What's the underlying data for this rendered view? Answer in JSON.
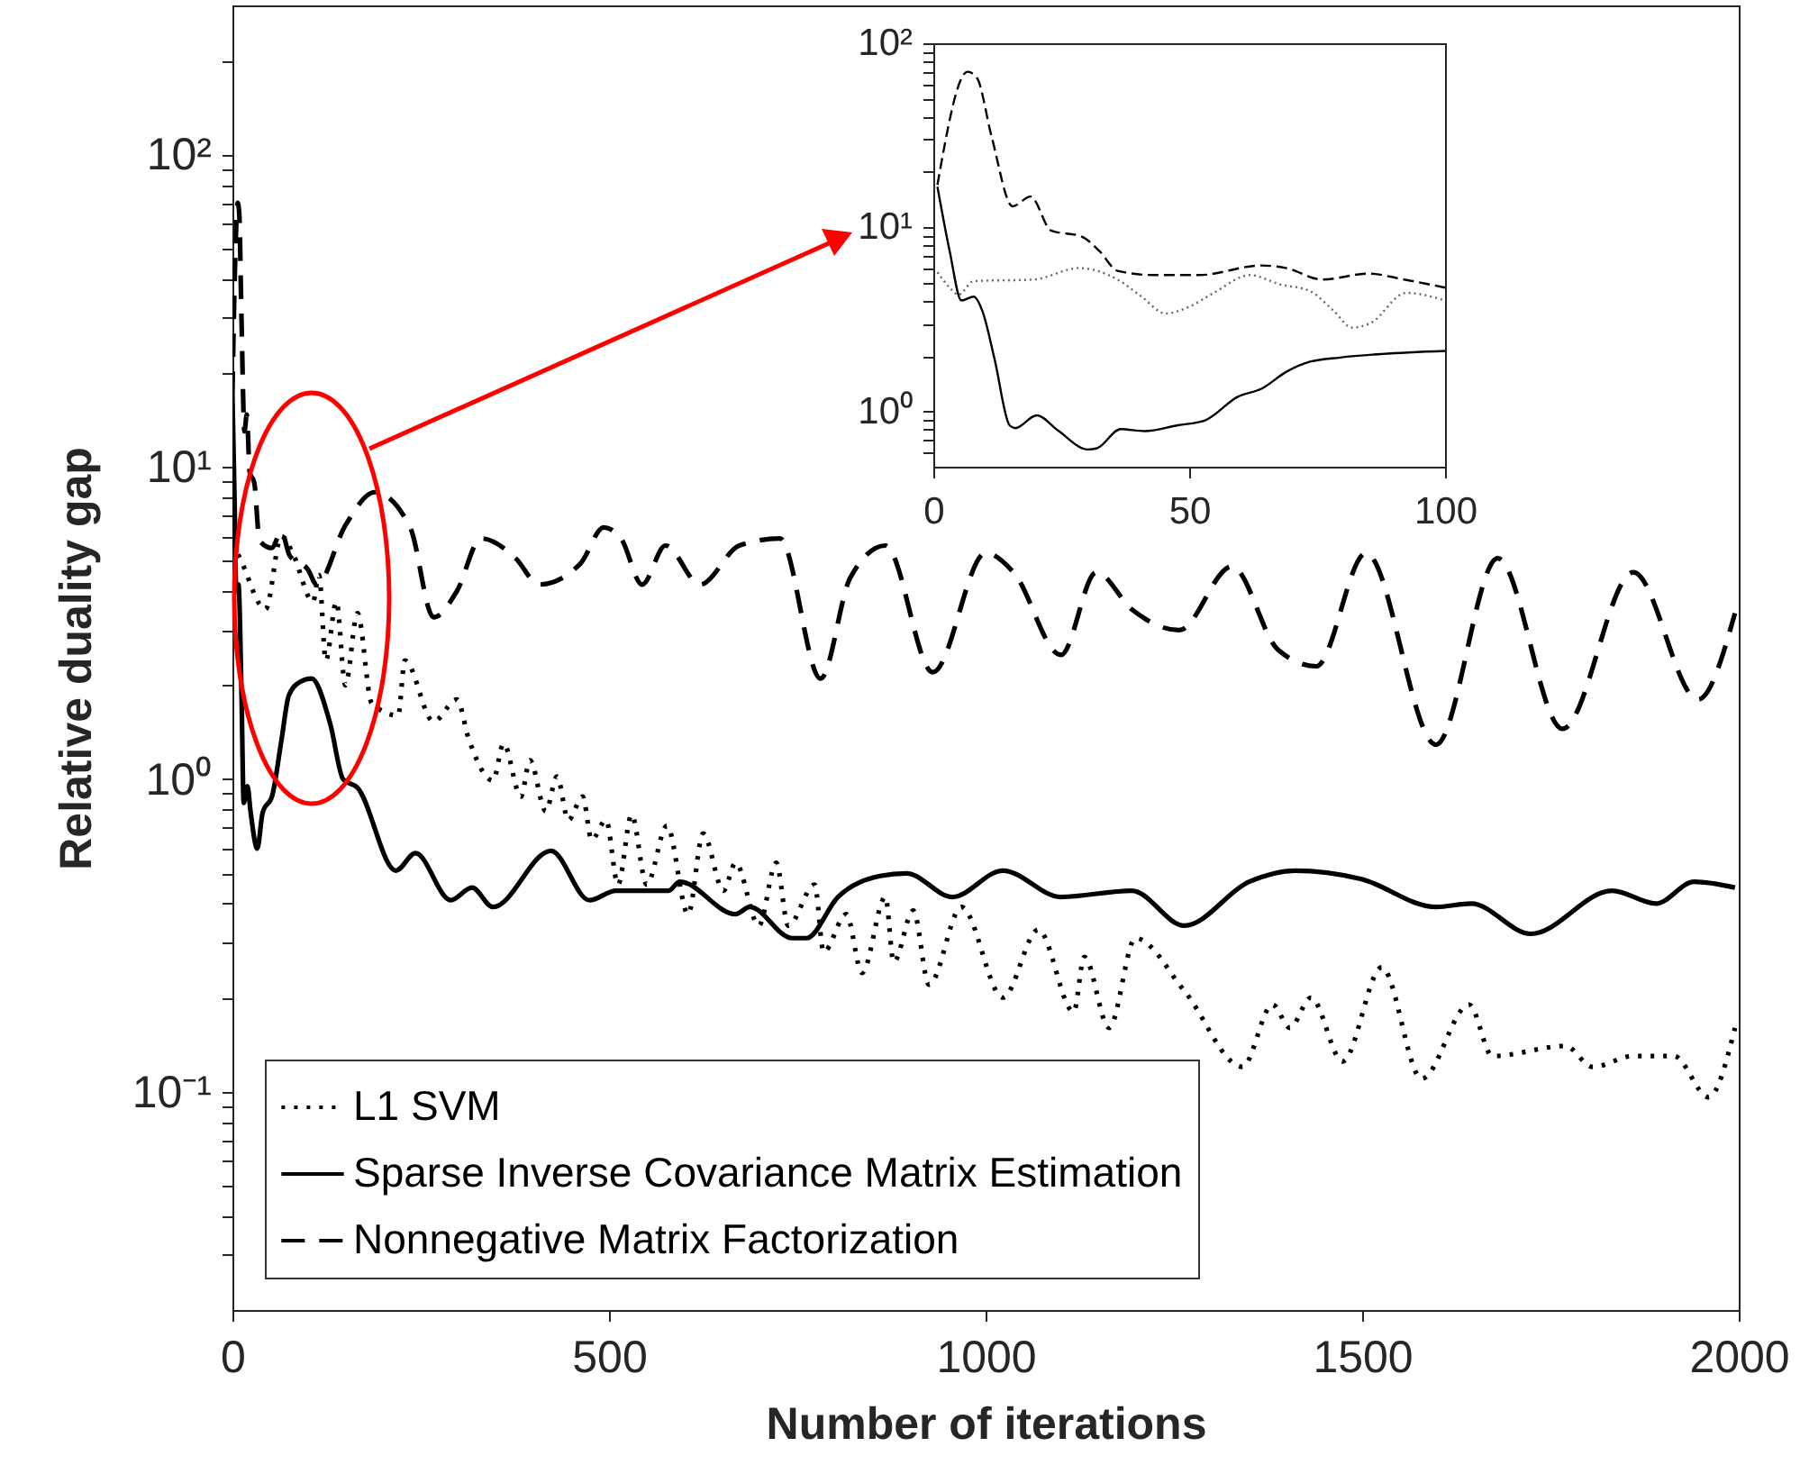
{
  "chart_data": [
    {
      "type": "line",
      "xlabel": "Number of iterations",
      "ylabel": "Relative duality gap",
      "log": "y",
      "grid": false,
      "legend": "bottom left",
      "xlim": [
        0,
        2000
      ],
      "xticks": [
        0,
        500,
        1000,
        1500,
        2000
      ],
      "ylim": [
        0.02,
        300
      ],
      "yticks": [
        {
          "value": 0.03,
          "label": null
        },
        {
          "value": 0.04,
          "label": null
        },
        {
          "value": 0.05,
          "label": null
        },
        {
          "value": 0.06,
          "label": null
        },
        {
          "value": 0.07,
          "label": null
        },
        {
          "value": 0.08,
          "label": null
        },
        {
          "value": 0.09,
          "label": null
        },
        {
          "value": 0.1,
          "label": "10⁻¹"
        },
        {
          "value": 0.2,
          "label": null
        },
        {
          "value": 0.3,
          "label": null
        },
        {
          "value": 0.4,
          "label": null
        },
        {
          "value": 0.5,
          "label": null
        },
        {
          "value": 0.6,
          "label": null
        },
        {
          "value": 0.7,
          "label": null
        },
        {
          "value": 0.8,
          "label": null
        },
        {
          "value": 0.9,
          "label": null
        },
        {
          "value": 1,
          "label": "10⁰"
        },
        {
          "value": 2,
          "label": null
        },
        {
          "value": 3,
          "label": null
        },
        {
          "value": 4,
          "label": null
        },
        {
          "value": 5,
          "label": null
        },
        {
          "value": 6,
          "label": null
        },
        {
          "value": 7,
          "label": null
        },
        {
          "value": 8,
          "label": null
        },
        {
          "value": 9,
          "label": null
        },
        {
          "value": 10,
          "label": "10¹"
        },
        {
          "value": 20,
          "label": null
        },
        {
          "value": 30,
          "label": null
        },
        {
          "value": 40,
          "label": null
        },
        {
          "value": 50,
          "label": null
        },
        {
          "value": 60,
          "label": null
        },
        {
          "value": 70,
          "label": null
        },
        {
          "value": 80,
          "label": null
        },
        {
          "value": 90,
          "label": null
        },
        {
          "value": 100,
          "label": "10²"
        },
        {
          "value": 200,
          "label": null
        }
      ],
      "series": [
        {
          "name": "L1 SVM",
          "color": "#000000",
          "line_style": "dotted",
          "x": [
            0,
            10,
            44,
            65,
            80,
            107,
            115,
            124,
            138,
            150,
            166,
            185,
            220,
            229,
            267,
            298,
            314,
            346,
            360,
            383,
            395,
            416,
            431,
            446,
            465,
            477,
            496,
            512,
            530,
            550,
            577,
            605,
            625,
            652,
            668,
            699,
            722,
            738,
            773,
            785,
            815,
            836,
            867,
            878,
            904,
            925,
            968,
            1023,
            1070,
            1117,
            1131,
            1164,
            1199,
            1264,
            1341,
            1381,
            1404,
            1432,
            1474,
            1526,
            1579,
            1642,
            1673,
            1770,
            1806,
            1860,
            1914,
            1960,
            1995
          ],
          "values": [
            5.7,
            5.1,
            3.5,
            6.0,
            5.3,
            3.7,
            4.5,
            2.4,
            3.7,
            2.0,
            3.4,
            1.75,
            1.6,
            2.4,
            1.53,
            1.8,
            1.34,
            0.99,
            1.3,
            0.88,
            1.15,
            0.79,
            1.02,
            0.74,
            0.88,
            0.64,
            0.74,
            0.46,
            0.77,
            0.46,
            0.71,
            0.37,
            0.67,
            0.44,
            0.54,
            0.34,
            0.54,
            0.34,
            0.46,
            0.28,
            0.37,
            0.24,
            0.42,
            0.26,
            0.38,
            0.22,
            0.39,
            0.2,
            0.33,
            0.18,
            0.27,
            0.16,
            0.31,
            0.21,
            0.12,
            0.19,
            0.16,
            0.2,
            0.125,
            0.25,
            0.11,
            0.19,
            0.13,
            0.14,
            0.12,
            0.13,
            0.13,
            0.096,
            0.16
          ]
        },
        {
          "name": "Sparse Inverse Covariance Matrix Estimation",
          "color": "#000000",
          "line_style": "solid",
          "x": [
            0,
            3,
            5,
            8,
            12,
            15,
            20,
            24,
            33,
            40,
            53,
            65,
            75,
            90,
            105,
            130,
            147,
            166,
            217,
            243,
            290,
            318,
            346,
            423,
            474,
            509,
            579,
            594,
            668,
            687,
            743,
            762,
            804,
            860,
            895,
            956,
            1023,
            1100,
            1194,
            1264,
            1350,
            1411,
            1498,
            1598,
            1645,
            1724,
            1832,
            1890,
            1941,
            1995
          ],
          "values": [
            17,
            7.4,
            4.0,
            4.2,
            1.9,
            0.84,
            0.95,
            0.79,
            0.6,
            0.78,
            0.89,
            1.33,
            1.86,
            2.05,
            2.1,
            1.5,
            1.0,
            0.94,
            0.51,
            0.58,
            0.41,
            0.45,
            0.39,
            0.59,
            0.41,
            0.44,
            0.44,
            0.47,
            0.37,
            0.39,
            0.31,
            0.31,
            0.42,
            0.49,
            0.5,
            0.42,
            0.51,
            0.42,
            0.44,
            0.34,
            0.47,
            0.51,
            0.48,
            0.39,
            0.4,
            0.32,
            0.44,
            0.4,
            0.47,
            0.45
          ]
        },
        {
          "name": "Nonnegative Matrix Factorization",
          "color": "#000000",
          "line_style": "dashed",
          "x": [
            0,
            3,
            7,
            9,
            12,
            16,
            19,
            23,
            29,
            36,
            52,
            65,
            76,
            100,
            112,
            150,
            189,
            236,
            267,
            298,
            330,
            376,
            407,
            462,
            493,
            516,
            544,
            575,
            621,
            673,
            727,
            781,
            820,
            867,
            930,
            1000,
            1037,
            1100,
            1147,
            1194,
            1257,
            1327,
            1388,
            1439,
            1505,
            1598,
            1680,
            1766,
            1860,
            1946,
            1995
          ],
          "values": [
            17,
            40,
            70,
            65,
            30,
            13,
            14.7,
            9.6,
            8.9,
            5.8,
            5.5,
            6.2,
            5.2,
            4.7,
            4.2,
            6.5,
            8.3,
            6.4,
            3.3,
            4.0,
            5.9,
            5.1,
            4.2,
            4.9,
            6.4,
            5.9,
            4.2,
            5.6,
            4.2,
            5.6,
            5.9,
            2.1,
            4.4,
            5.6,
            2.2,
            5.3,
            4.6,
            2.5,
            4.6,
            3.5,
            3.0,
            4.8,
            2.6,
            2.3,
            5.3,
            1.29,
            5.1,
            1.45,
            4.6,
            1.8,
            3.4
          ]
        }
      ]
    },
    {
      "type": "line",
      "log": "y",
      "grid": false,
      "xlim": [
        0,
        100
      ],
      "xticks": [
        0,
        50,
        100
      ],
      "ylim": [
        0.5,
        100
      ],
      "yticks": [
        {
          "value": 0.6,
          "label": null
        },
        {
          "value": 0.7,
          "label": null
        },
        {
          "value": 0.8,
          "label": null
        },
        {
          "value": 0.9,
          "label": null
        },
        {
          "value": 1,
          "label": "10⁰"
        },
        {
          "value": 2,
          "label": null
        },
        {
          "value": 3,
          "label": null
        },
        {
          "value": 4,
          "label": null
        },
        {
          "value": 5,
          "label": null
        },
        {
          "value": 6,
          "label": null
        },
        {
          "value": 7,
          "label": null
        },
        {
          "value": 8,
          "label": null
        },
        {
          "value": 9,
          "label": null
        },
        {
          "value": 10,
          "label": "10¹"
        },
        {
          "value": 20,
          "label": null
        },
        {
          "value": 30,
          "label": null
        },
        {
          "value": 40,
          "label": null
        },
        {
          "value": 50,
          "label": null
        },
        {
          "value": 60,
          "label": null
        },
        {
          "value": 70,
          "label": null
        },
        {
          "value": 80,
          "label": null
        },
        {
          "value": 90,
          "label": null
        },
        {
          "value": 100,
          "label": "10²"
        }
      ],
      "series": [
        {
          "color": "#666666",
          "line_style": "dotted",
          "x": [
            0.8,
            3.2,
            4.9,
            7.9,
            19.6,
            28.4,
            36,
            40.7,
            45.4,
            50,
            54.8,
            61.9,
            67.7,
            73.6,
            78.3,
            81.8,
            85.3,
            92.4,
            100
          ],
          "values": [
            5.7,
            4.7,
            4.3,
            5.1,
            5.2,
            6.0,
            5.2,
            4.2,
            3.4,
            3.7,
            4.4,
            5.5,
            4.9,
            4.5,
            3.5,
            2.85,
            3.0,
            4.4,
            4.0
          ]
        },
        {
          "color": "#000000",
          "line_style": "solid",
          "x": [
            0.8,
            3.2,
            5.5,
            7.9,
            9.6,
            12,
            14.9,
            16,
            20.2,
            24.3,
            30.2,
            32,
            36.6,
            41.3,
            47.8,
            53,
            59.5,
            64.2,
            69,
            73.6,
            79.5,
            87.7,
            100
          ],
          "values": [
            16.6,
            7.4,
            4.0,
            4.2,
            3.5,
            1.9,
            0.84,
            0.81,
            0.95,
            0.79,
            0.62,
            0.63,
            0.8,
            0.78,
            0.84,
            0.89,
            1.2,
            1.33,
            1.64,
            1.86,
            1.96,
            2.05,
            2.13
          ]
        },
        {
          "color": "#000000",
          "line_style": "dashed",
          "x": [
            0.8,
            6.7,
            8.5,
            11.4,
            15.5,
            19,
            23,
            29,
            32.5,
            36,
            43,
            52,
            64,
            69,
            76,
            85,
            92,
            100
          ],
          "values": [
            17,
            70,
            65,
            31,
            13,
            14.7,
            9.6,
            8.9,
            7.4,
            5.8,
            5.5,
            5.5,
            6.2,
            6.0,
            5.2,
            5.6,
            5.2,
            4.7
          ]
        }
      ]
    }
  ]
}
